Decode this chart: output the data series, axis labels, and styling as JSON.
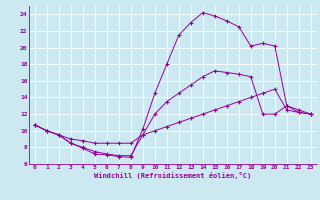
{
  "xlabel": "Windchill (Refroidissement éolien,°C)",
  "bg_color": "#cce8f0",
  "line_color": "#990099",
  "xlim": [
    -0.5,
    23.5
  ],
  "ylim": [
    6,
    25
  ],
  "xticks": [
    0,
    1,
    2,
    3,
    4,
    5,
    6,
    7,
    8,
    9,
    10,
    11,
    12,
    13,
    14,
    15,
    16,
    17,
    18,
    19,
    20,
    21,
    22,
    23
  ],
  "yticks": [
    6,
    8,
    10,
    12,
    14,
    16,
    18,
    20,
    22,
    24
  ],
  "line1_x": [
    0,
    1,
    2,
    3,
    4,
    5,
    6,
    7,
    8,
    9,
    10,
    11,
    12,
    13,
    14,
    15,
    16,
    17,
    18,
    19,
    20,
    21,
    22,
    23
  ],
  "line1_y": [
    10.7,
    10.0,
    9.5,
    8.5,
    7.9,
    7.2,
    7.1,
    6.9,
    6.8,
    10.2,
    14.5,
    18.0,
    21.5,
    23.0,
    24.2,
    23.8,
    23.2,
    22.5,
    20.2,
    20.5,
    20.2,
    13.0,
    12.2,
    12.0
  ],
  "line2_x": [
    0,
    1,
    2,
    3,
    4,
    5,
    6,
    7,
    8,
    9,
    10,
    11,
    12,
    13,
    14,
    15,
    16,
    17,
    18,
    19,
    20,
    21,
    22,
    23
  ],
  "line2_y": [
    10.7,
    10.0,
    9.5,
    8.5,
    8.0,
    7.5,
    7.2,
    7.0,
    7.0,
    9.5,
    12.0,
    13.5,
    14.5,
    15.5,
    16.5,
    17.2,
    17.0,
    16.8,
    16.5,
    12.0,
    12.0,
    13.0,
    12.5,
    12.0
  ],
  "line3_x": [
    0,
    1,
    2,
    3,
    4,
    5,
    6,
    7,
    8,
    9,
    10,
    11,
    12,
    13,
    14,
    15,
    16,
    17,
    18,
    19,
    20,
    21,
    22,
    23
  ],
  "line3_y": [
    10.7,
    10.0,
    9.5,
    9.0,
    8.8,
    8.5,
    8.5,
    8.5,
    8.5,
    9.5,
    10.0,
    10.5,
    11.0,
    11.5,
    12.0,
    12.5,
    13.0,
    13.5,
    14.0,
    14.5,
    15.0,
    12.5,
    12.2,
    12.0
  ]
}
